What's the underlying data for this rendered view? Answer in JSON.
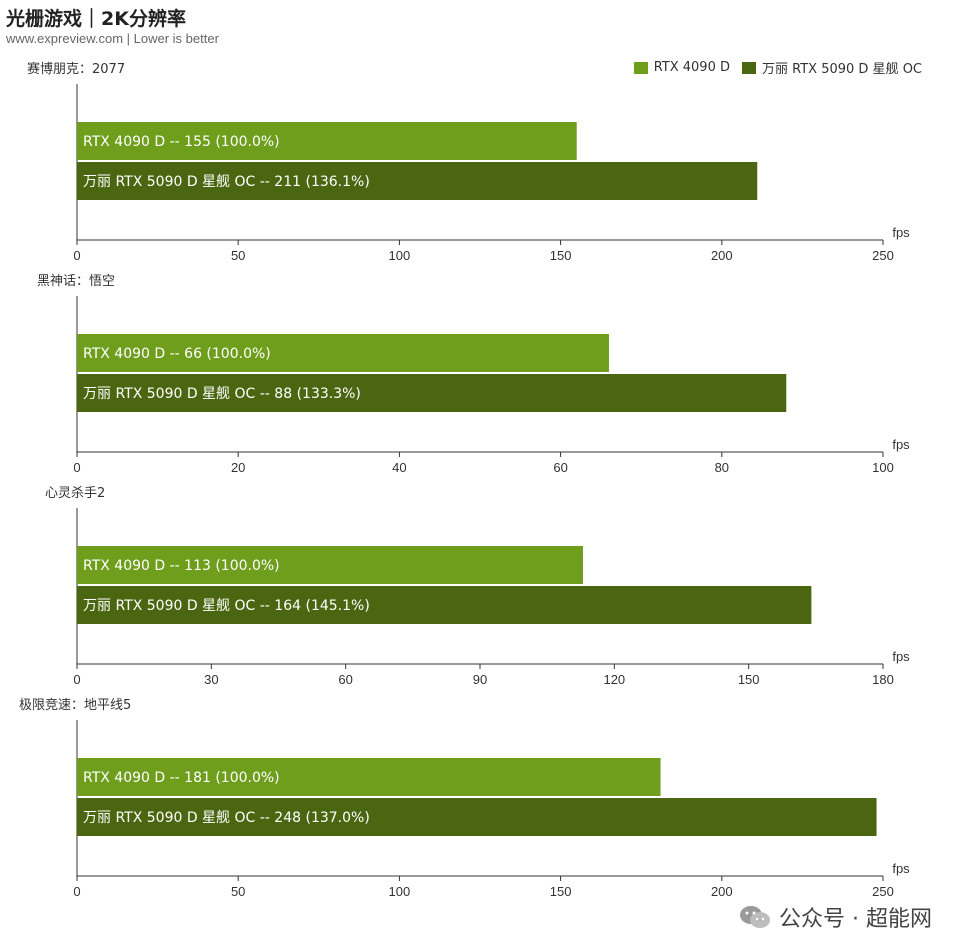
{
  "header": {
    "title": "光栅游戏｜2K分辨率",
    "subtitle": "www.expreview.com | Lower is better"
  },
  "legend": [
    {
      "label": "RTX 4090 D",
      "color": "#6e9e1c"
    },
    {
      "label": "万丽 RTX 5090 D 星舰 OC",
      "color": "#4a6611"
    }
  ],
  "watermark": {
    "text": "公众号 · 超能网"
  },
  "chart_data": [
    {
      "type": "bar",
      "title": "赛博朋克：2077",
      "xlabel": "fps",
      "xlim": [
        0,
        250
      ],
      "ticks": [
        0,
        50,
        100,
        150,
        200,
        250
      ],
      "series": [
        {
          "name": "RTX 4090 D",
          "value": 155,
          "label": "RTX 4090 D  --  155 (100.0%)",
          "color": "#6e9e1c"
        },
        {
          "name": "万丽 RTX 5090 D 星舰 OC",
          "value": 211,
          "label": "万丽 RTX 5090 D 星舰 OC  --  211 (136.1%)",
          "color": "#4a6611"
        }
      ]
    },
    {
      "type": "bar",
      "title": "黑神话：悟空",
      "xlabel": "fps",
      "xlim": [
        0,
        100
      ],
      "ticks": [
        0,
        20,
        40,
        60,
        80,
        100
      ],
      "series": [
        {
          "name": "RTX 4090 D",
          "value": 66,
          "label": "RTX 4090 D  --  66 (100.0%)",
          "color": "#6e9e1c"
        },
        {
          "name": "万丽 RTX 5090 D 星舰 OC",
          "value": 88,
          "label": "万丽 RTX 5090 D 星舰 OC  --  88 (133.3%)",
          "color": "#4a6611"
        }
      ]
    },
    {
      "type": "bar",
      "title": "心灵杀手2",
      "xlabel": "fps",
      "xlim": [
        0,
        180
      ],
      "ticks": [
        0,
        30,
        60,
        90,
        120,
        150,
        180
      ],
      "series": [
        {
          "name": "RTX 4090 D",
          "value": 113,
          "label": "RTX 4090 D  --  113 (100.0%)",
          "color": "#6e9e1c"
        },
        {
          "name": "万丽 RTX 5090 D 星舰 OC",
          "value": 164,
          "label": "万丽 RTX 5090 D 星舰 OC  --  164 (145.1%)",
          "color": "#4a6611"
        }
      ]
    },
    {
      "type": "bar",
      "title": "极限竞速：地平线5",
      "xlabel": "fps",
      "xlim": [
        0,
        250
      ],
      "ticks": [
        0,
        50,
        100,
        150,
        200,
        250
      ],
      "series": [
        {
          "name": "RTX 4090 D",
          "value": 181,
          "label": "RTX 4090 D  --  181 (100.0%)",
          "color": "#6e9e1c"
        },
        {
          "name": "万丽 RTX 5090 D 星舰 OC",
          "value": 248,
          "label": "万丽 RTX 5090 D 星舰 OC  --  248 (137.0%)",
          "color": "#4a6611"
        }
      ]
    }
  ]
}
